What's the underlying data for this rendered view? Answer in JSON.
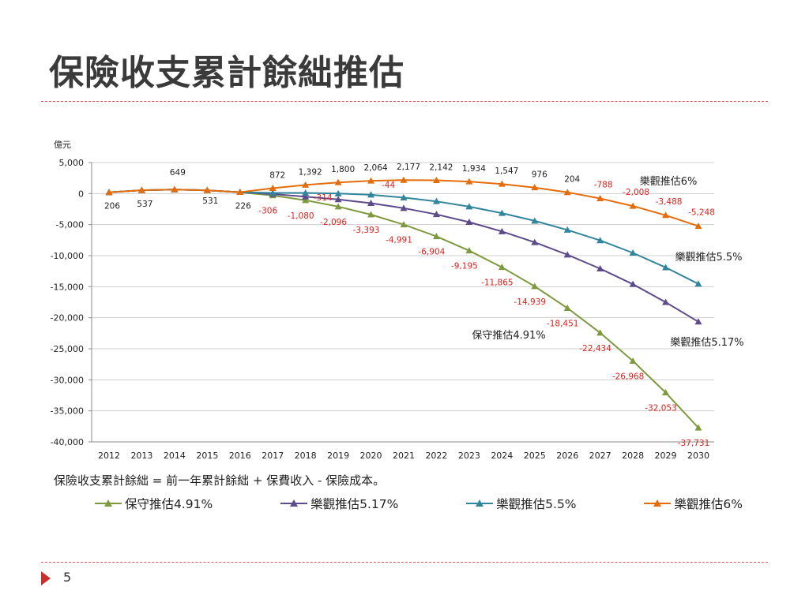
{
  "slide": {
    "title": "保險收支累計餘絀推估",
    "formula": "保險收支累計餘絀 = 前一年累計餘絀 + 保費收入 - 保險成本。",
    "page_number": "5"
  },
  "colors": {
    "accent_red": "#d9534f",
    "label_red": "#e0201b"
  },
  "chart_data": {
    "type": "line",
    "title": "",
    "xlabel": "",
    "ylabel": "億元",
    "ylim": [
      -40000,
      5000
    ],
    "yticks": [
      5000,
      0,
      -5000,
      -10000,
      -15000,
      -20000,
      -25000,
      -30000,
      -35000,
      -40000
    ],
    "ytick_labels": [
      "5,000",
      "0",
      "-5,000",
      "-10,000",
      "-15,000",
      "-20,000",
      "-25,000",
      "-30,000",
      "-35,000",
      "-40,000"
    ],
    "grid": "horizontal",
    "legend_position": "bottom",
    "x": [
      "2012",
      "2013",
      "2014",
      "2015",
      "2016",
      "2017",
      "2018",
      "2019",
      "2020",
      "2021",
      "2022",
      "2023",
      "2024",
      "2025",
      "2026",
      "2027",
      "2028",
      "2029",
      "2030"
    ],
    "series": [
      {
        "name": "保守推估4.91%",
        "color": "#7f9a3e",
        "values": [
          206,
          537,
          649,
          531,
          226,
          -306,
          -1080,
          -2096,
          -3393,
          -4991,
          -6904,
          -9195,
          -11865,
          -14939,
          -18451,
          -22434,
          -26968,
          -32053,
          -37731
        ],
        "label_from_index": 5,
        "line_label": "保守推估4.91%"
      },
      {
        "name": "樂觀推估5.17%",
        "color": "#5e4b8b",
        "values": [
          206,
          537,
          649,
          531,
          226,
          -80,
          -500,
          -950,
          -1550,
          -2350,
          -3350,
          -4600,
          -6100,
          -7850,
          -9850,
          -12100,
          -14600,
          -17500,
          -20650
        ],
        "line_label": "樂觀推估5.17%"
      },
      {
        "name": "樂觀推估5.5%",
        "color": "#31859c",
        "values": [
          206,
          537,
          649,
          531,
          226,
          100,
          100,
          0,
          -200,
          -650,
          -1250,
          -2100,
          -3150,
          -4400,
          -5850,
          -7550,
          -9550,
          -11900,
          -14550
        ],
        "line_label": "樂觀推估5.5%"
      },
      {
        "name": "樂觀推估6%",
        "color": "#e46c0a",
        "values": [
          206,
          537,
          649,
          531,
          226,
          872,
          1392,
          1800,
          2064,
          2177,
          2142,
          1934,
          1547,
          976,
          204,
          -788,
          -2008,
          -3488,
          -5248
        ],
        "label_from_index": 5,
        "line_label": "樂觀推估6%"
      }
    ],
    "shared_labels": [
      "206",
      "537",
      "649",
      "531",
      "226"
    ],
    "optimistic_6_labels": [
      "872",
      "1,392",
      "1,800",
      "2,064",
      "2,177",
      "2,142",
      "1,934",
      "1,547",
      "976",
      "204",
      "-788",
      "-2,008",
      "-3,488",
      "-5,248"
    ],
    "conservative_labels": [
      "-306",
      "-1,080",
      "-2,096",
      "-3,393",
      "-4,991",
      "-6,904",
      "-9,195",
      "-11,865",
      "-14,939",
      "-18,451",
      "-22,434",
      "-26,968",
      "-32,053",
      "-37,731"
    ],
    "extra_annotations": [
      {
        "text": "-314",
        "x": "2018"
      },
      {
        "text": "-44",
        "x": "2020"
      }
    ]
  }
}
